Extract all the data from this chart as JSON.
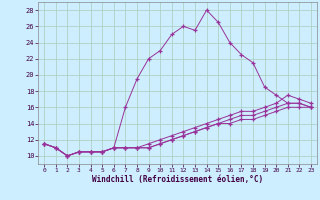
{
  "xlabel": "Windchill (Refroidissement éolien,°C)",
  "bg_color": "#cceeff",
  "grid_color": "#aaccbb",
  "line_color": "#993399",
  "xlim": [
    -0.5,
    23.5
  ],
  "ylim": [
    9,
    29
  ],
  "yticks": [
    10,
    12,
    14,
    16,
    18,
    20,
    22,
    24,
    26,
    28
  ],
  "xticks": [
    0,
    1,
    2,
    3,
    4,
    5,
    6,
    7,
    8,
    9,
    10,
    11,
    12,
    13,
    14,
    15,
    16,
    17,
    18,
    19,
    20,
    21,
    22,
    23
  ],
  "series": [
    [
      11.5,
      11.0,
      10.0,
      10.5,
      10.5,
      10.5,
      11.0,
      16.0,
      19.5,
      22.0,
      23.0,
      25.0,
      26.0,
      25.5,
      28.0,
      26.5,
      24.0,
      22.5,
      21.5,
      18.5,
      17.5,
      16.5,
      16.5,
      16.0
    ],
    [
      11.5,
      11.0,
      10.0,
      10.5,
      10.5,
      10.5,
      11.0,
      11.0,
      11.0,
      11.5,
      12.0,
      12.5,
      13.0,
      13.5,
      14.0,
      14.5,
      15.0,
      15.5,
      15.5,
      16.0,
      16.5,
      17.5,
      17.0,
      16.5
    ],
    [
      11.5,
      11.0,
      10.0,
      10.5,
      10.5,
      10.5,
      11.0,
      11.0,
      11.0,
      11.0,
      11.5,
      12.0,
      12.5,
      13.0,
      13.5,
      14.0,
      14.5,
      15.0,
      15.0,
      15.5,
      16.0,
      16.5,
      16.5,
      16.0
    ],
    [
      11.5,
      11.0,
      10.0,
      10.5,
      10.5,
      10.5,
      11.0,
      11.0,
      11.0,
      11.0,
      11.5,
      12.0,
      12.5,
      13.0,
      13.5,
      14.0,
      14.0,
      14.5,
      14.5,
      15.0,
      15.5,
      16.0,
      16.0,
      16.0
    ]
  ]
}
